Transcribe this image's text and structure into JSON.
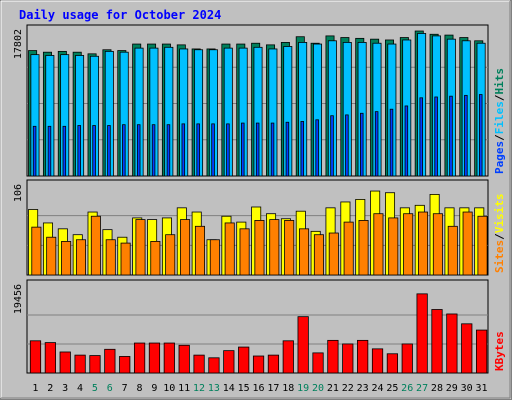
{
  "colors": {
    "background": "#c0c0c0",
    "title": "#0000ff",
    "hits": "#00805c",
    "files": "#00c0ff",
    "pages": "#0040ff",
    "visits": "#ffff00",
    "sites": "#ff8000",
    "kbytes": "#ff0000",
    "weekend_label": "#00805c",
    "weekday_label": "#000000"
  },
  "chart_data": {
    "type": "bar",
    "title": "Daily usage for October 2024",
    "x": [
      "1",
      "2",
      "3",
      "4",
      "5",
      "6",
      "7",
      "8",
      "9",
      "10",
      "11",
      "12",
      "13",
      "14",
      "15",
      "16",
      "17",
      "18",
      "19",
      "20",
      "21",
      "22",
      "23",
      "24",
      "25",
      "26",
      "27",
      "28",
      "29",
      "30",
      "31"
    ],
    "weekend_days": [
      "5",
      "6",
      "12",
      "13",
      "19",
      "20",
      "26",
      "27"
    ],
    "panels": [
      {
        "name": "hits-files-pages",
        "max_label": "17802",
        "ymax": 17802,
        "side_labels": [
          "Pages",
          "/",
          "Files",
          "/",
          "Hits"
        ],
        "series": [
          {
            "name": "Hits",
            "values": [
              15400,
              15200,
              15300,
              15200,
              15000,
              15500,
              15400,
              16200,
              16200,
              16200,
              16100,
              15600,
              15600,
              16200,
              16200,
              16300,
              16100,
              16400,
              17100,
              16300,
              17200,
              17000,
              16900,
              16800,
              16700,
              17000,
              17800,
              17400,
              17300,
              17000,
              16600
            ]
          },
          {
            "name": "Files",
            "values": [
              14900,
              14800,
              14900,
              14800,
              14700,
              15300,
              15200,
              15700,
              15700,
              15800,
              15600,
              15500,
              15500,
              15700,
              15700,
              15800,
              15600,
              15900,
              16400,
              16200,
              16600,
              16400,
              16400,
              16300,
              16200,
              16700,
              17500,
              17200,
              16800,
              16600,
              16300
            ]
          },
          {
            "name": "Pages",
            "values": [
              6100,
              6100,
              6100,
              6200,
              6200,
              6200,
              6300,
              6300,
              6300,
              6300,
              6400,
              6400,
              6400,
              6400,
              6500,
              6500,
              6500,
              6600,
              6700,
              6900,
              7400,
              7500,
              7700,
              7900,
              8200,
              8600,
              9600,
              9700,
              9800,
              9900,
              10000
            ]
          }
        ]
      },
      {
        "name": "visits-sites",
        "max_label": "106",
        "ymax": 106,
        "side_labels": [
          "Sites",
          "/",
          "Visits"
        ],
        "series": [
          {
            "name": "Visits",
            "values": [
              78,
              62,
              55,
              48,
              75,
              54,
              45,
              68,
              66,
              68,
              80,
              75,
              42,
              70,
              63,
              81,
              73,
              67,
              76,
              52,
              80,
              87,
              90,
              100,
              98,
              80,
              83,
              96,
              80,
              80,
              80
            ]
          },
          {
            "name": "Sites",
            "values": [
              57,
              45,
              40,
              42,
              70,
              42,
              38,
              66,
              40,
              48,
              66,
              58,
              42,
              62,
              55,
              65,
              66,
              65,
              55,
              48,
              50,
              63,
              65,
              73,
              68,
              73,
              75,
              73,
              58,
              75,
              70
            ]
          }
        ]
      },
      {
        "name": "kbytes",
        "max_label": "19456",
        "ymax": 19456,
        "side_labels": [
          "KBytes"
        ],
        "series": [
          {
            "name": "KBytes",
            "values": [
              7200,
              6800,
              4700,
              4000,
              3900,
              5300,
              3700,
              6700,
              6700,
              6700,
              6200,
              4000,
              3400,
              5000,
              5800,
              3800,
              4000,
              7200,
              12600,
              4500,
              7300,
              6500,
              7300,
              5400,
              4300,
              6500,
              17700,
              14200,
              13200,
              11000,
              9600
            ]
          }
        ]
      }
    ]
  }
}
